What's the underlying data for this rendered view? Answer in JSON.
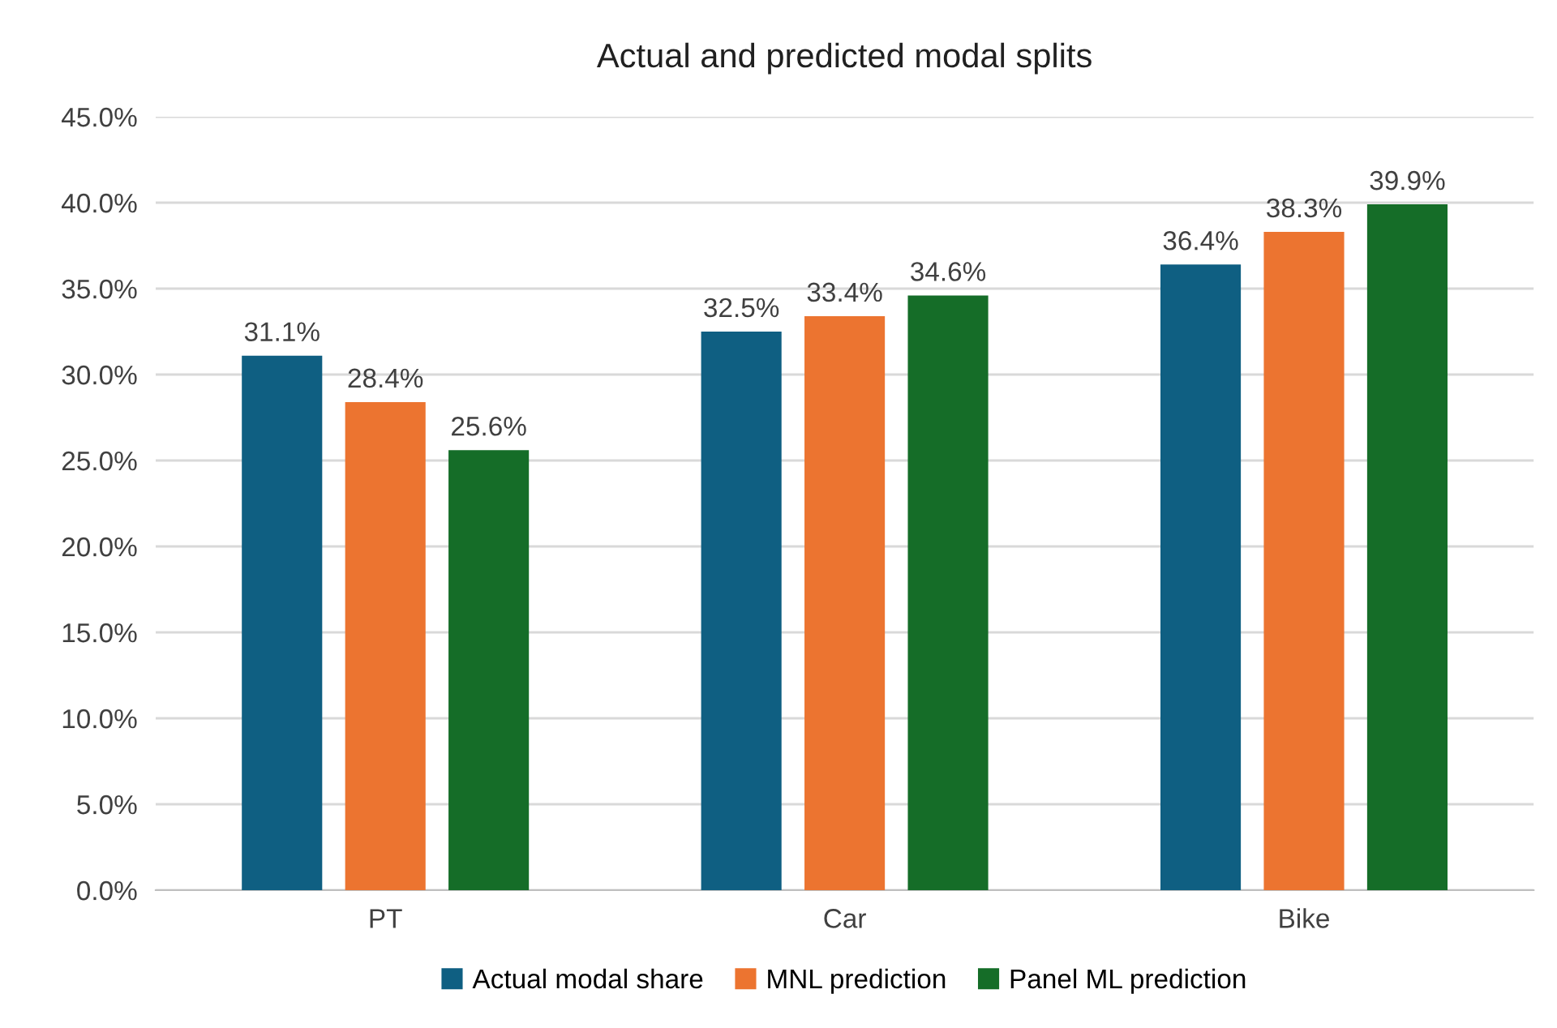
{
  "chart_data": {
    "type": "bar",
    "title": "Actual and predicted modal splits",
    "categories": [
      "PT",
      "Car",
      "Bike"
    ],
    "series": [
      {
        "name": "Actual modal share",
        "color": "#0f5f82",
        "values": [
          31.1,
          32.5,
          36.4
        ],
        "value_labels": [
          "31.1%",
          "32.5%",
          "36.4%"
        ]
      },
      {
        "name": "MNL prediction",
        "color": "#ec7430",
        "values": [
          28.4,
          33.4,
          38.3
        ],
        "value_labels": [
          "28.4%",
          "33.4%",
          "38.3%"
        ]
      },
      {
        "name": "Panel ML prediction",
        "color": "#156d28",
        "values": [
          25.6,
          34.6,
          39.9
        ],
        "value_labels": [
          "25.6%",
          "34.6%",
          "39.9%"
        ]
      }
    ],
    "ylim": [
      0,
      45
    ],
    "yticks": [
      {
        "value": 0,
        "label": "0.0%"
      },
      {
        "value": 5,
        "label": "5.0%"
      },
      {
        "value": 10,
        "label": "10.0%"
      },
      {
        "value": 15,
        "label": "15.0%"
      },
      {
        "value": 20,
        "label": "20.0%"
      },
      {
        "value": 25,
        "label": "25.0%"
      },
      {
        "value": 30,
        "label": "30.0%"
      },
      {
        "value": 35,
        "label": "35.0%"
      },
      {
        "value": 40,
        "label": "40.0%"
      },
      {
        "value": 45,
        "label": "45.0%"
      }
    ],
    "grid": "y",
    "legend": "bottom"
  }
}
